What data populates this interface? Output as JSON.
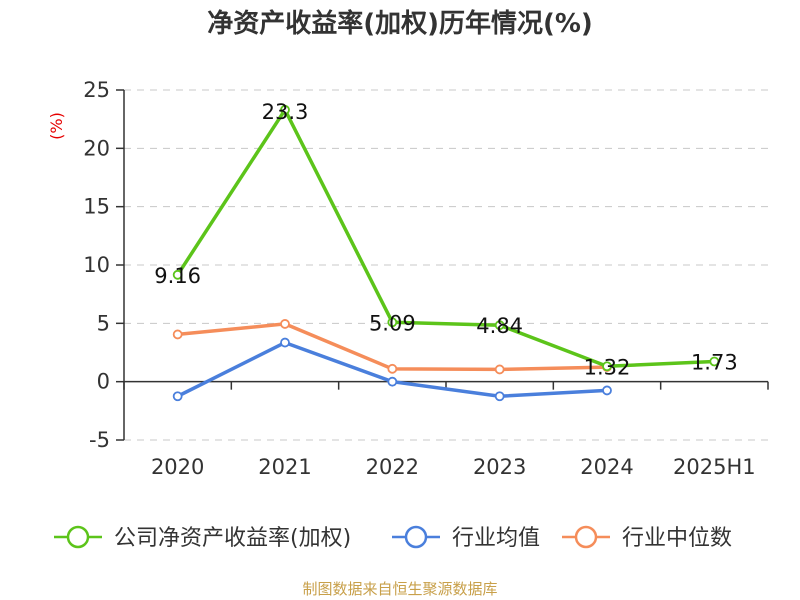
{
  "chart_data": {
    "type": "line",
    "title": "净资产收益率(加权)历年情况(%)",
    "ylabel": "(%)",
    "xlabel": "",
    "categories": [
      "2020",
      "2021",
      "2022",
      "2023",
      "2024",
      "2025H1"
    ],
    "y_ticks": [
      "25",
      "20",
      "15",
      "10",
      "5",
      "0",
      "-5"
    ],
    "ylim": [
      -5,
      25
    ],
    "grid": true,
    "legend_position": "bottom",
    "series": [
      {
        "name": "公司净资产收益率(加权)",
        "color": "#5cc41a",
        "values": [
          9.16,
          23.3,
          5.09,
          4.84,
          1.32,
          1.73
        ],
        "labels": [
          "9.16",
          "23.3",
          "5.09",
          "4.84",
          "1.32",
          "1.73"
        ]
      },
      {
        "name": "行业均值",
        "color": "#4a7fdc",
        "values": [
          -1.25,
          3.35,
          0.0,
          -1.25,
          -0.75,
          null
        ]
      },
      {
        "name": "行业中位数",
        "color": "#f58d5a",
        "values": [
          4.05,
          4.95,
          1.1,
          1.05,
          1.25,
          null
        ]
      }
    ],
    "source": "制图数据来自恒生聚源数据库"
  }
}
